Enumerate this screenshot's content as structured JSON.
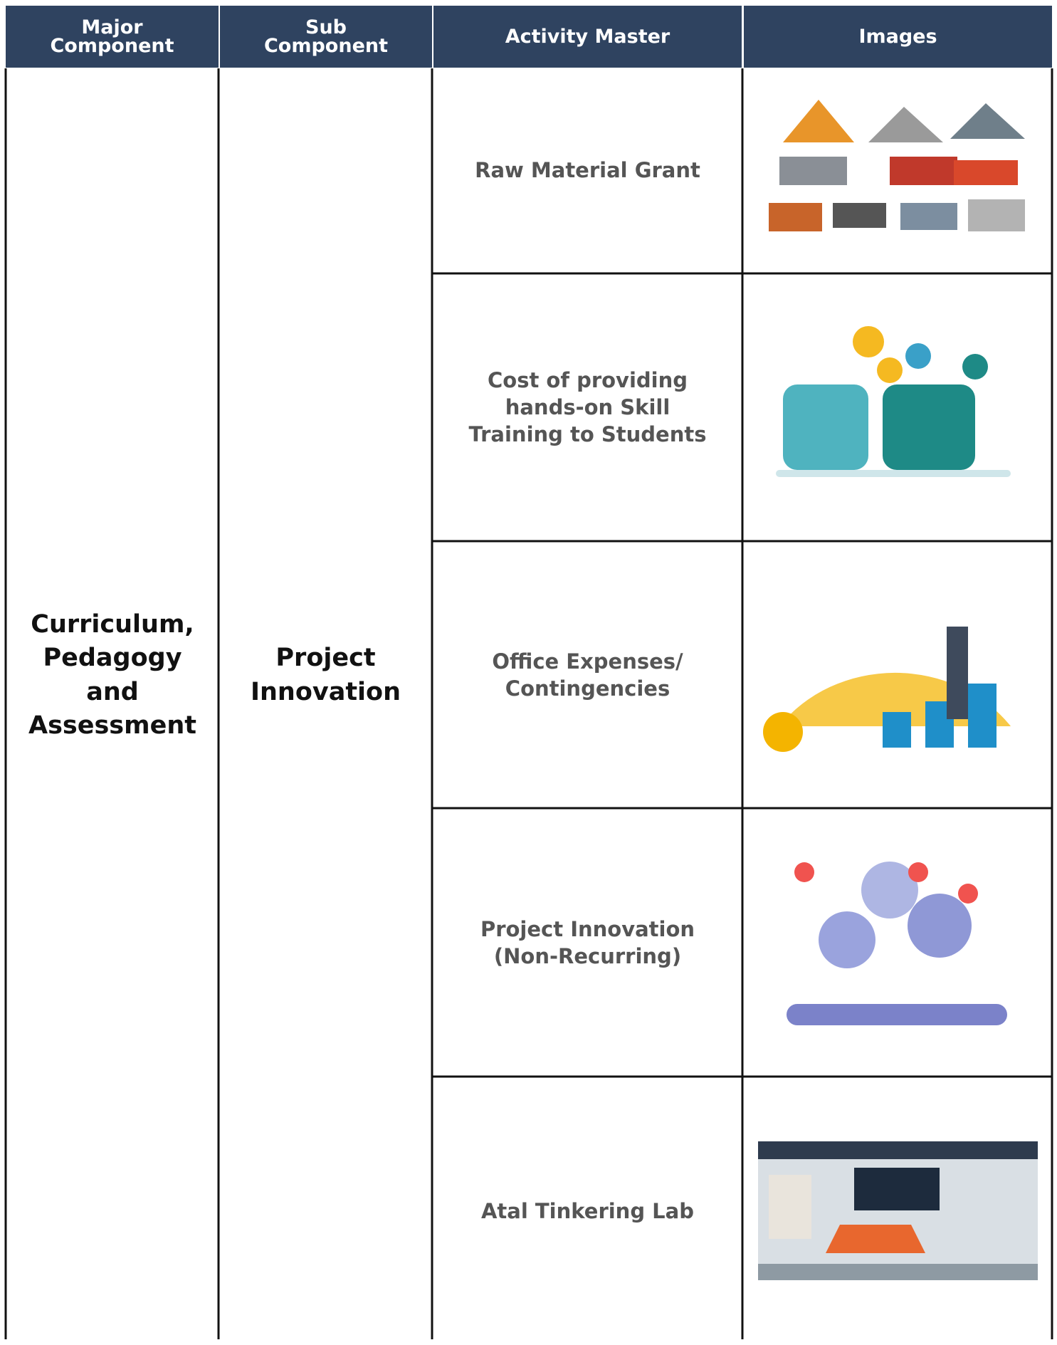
{
  "table": {
    "headers": [
      "Major Component",
      "Sub Component",
      "Activity Master",
      "Images"
    ],
    "major_component": "Curriculum, Pedagogy and Assessment",
    "sub_component": "Project Innovation",
    "activities": [
      "Raw Material Grant",
      "Cost of providing hands-on Skill Training to Students",
      "Office Expenses/ Contingencies",
      "Project Innovation (Non-Recurring)",
      "Atal Tinkering Lab"
    ]
  }
}
